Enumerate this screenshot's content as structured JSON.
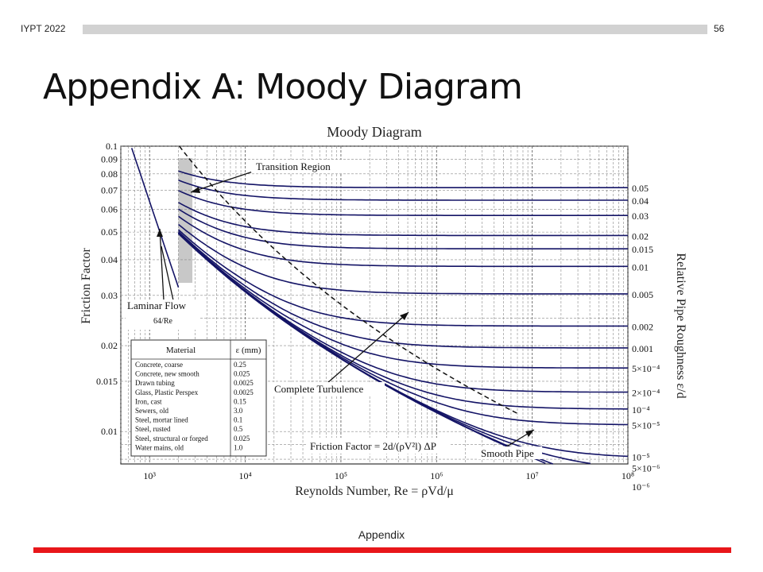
{
  "header": {
    "label": "IYPT 2022",
    "page_number": "56"
  },
  "slide": {
    "title": "Appendix A: Moody Diagram"
  },
  "footer": {
    "label": "Appendix"
  },
  "colors": {
    "accent_bar": "#e8161a",
    "curve": "#141466",
    "header_bar": "#d2d2d2"
  },
  "chart_data": {
    "type": "line",
    "title": "Moody Diagram",
    "xlabel": "Reynolds Number, Re = ρVd/μ",
    "ylabel": "Friction Factor",
    "right_label": "Relative Pipe Roughness ε/d",
    "x_scale": "log",
    "y_scale": "log",
    "xlim": [
      500,
      100000000
    ],
    "ylim": [
      0.0077,
      0.1
    ],
    "grid": true,
    "x_ticks": [
      {
        "value": 1000,
        "label": "10³"
      },
      {
        "value": 10000,
        "label": "10⁴"
      },
      {
        "value": 100000,
        "label": "10⁵"
      },
      {
        "value": 1000000,
        "label": "10⁶"
      },
      {
        "value": 10000000,
        "label": "10⁷"
      },
      {
        "value": 100000000,
        "label": "10⁸"
      }
    ],
    "y_ticks": [
      {
        "value": 0.1,
        "label": "0.1"
      },
      {
        "value": 0.09,
        "label": "0.09"
      },
      {
        "value": 0.08,
        "label": "0.08"
      },
      {
        "value": 0.07,
        "label": "0.07"
      },
      {
        "value": 0.06,
        "label": "0.06"
      },
      {
        "value": 0.05,
        "label": "0.05"
      },
      {
        "value": 0.04,
        "label": "0.04"
      },
      {
        "value": 0.03,
        "label": "0.03"
      },
      {
        "value": 0.02,
        "label": "0.02"
      },
      {
        "value": 0.015,
        "label": "0.015"
      },
      {
        "value": 0.01,
        "label": "0.01"
      }
    ],
    "roughness_curves": [
      {
        "value": 0.05,
        "label": "0.05"
      },
      {
        "value": 0.04,
        "label": "0.04"
      },
      {
        "value": 0.03,
        "label": "0.03"
      },
      {
        "value": 0.02,
        "label": "0.02"
      },
      {
        "value": 0.015,
        "label": "0.015"
      },
      {
        "value": 0.01,
        "label": "0.01"
      },
      {
        "value": 0.005,
        "label": "0.005"
      },
      {
        "value": 0.002,
        "label": "0.002"
      },
      {
        "value": 0.001,
        "label": "0.001"
      },
      {
        "value": 0.0005,
        "label": "5×10⁻⁴"
      },
      {
        "value": 0.0002,
        "label": "2×10⁻⁴"
      },
      {
        "value": 0.0001,
        "label": "10⁻⁴"
      },
      {
        "value": 5e-05,
        "label": "5×10⁻⁵"
      },
      {
        "value": 1e-05,
        "label": "10⁻⁵"
      },
      {
        "value": 5e-06,
        "label": "5×10⁻⁶"
      },
      {
        "value": 1e-06,
        "label": "10⁻⁶"
      },
      {
        "value": 0,
        "label": ""
      }
    ],
    "laminar": {
      "equation": "f = 64/Re",
      "re_range": [
        650,
        2000
      ]
    },
    "transition_region_re": [
      2000,
      2800
    ],
    "annotations": {
      "transition": "Transition Region",
      "laminar": "Laminar Flow",
      "laminar_formula": "64/Re",
      "turbulence": "Complete Turbulence",
      "friction_formula": "Friction Factor = 2d/(ρV²l) ΔP",
      "smooth": "Smooth Pipe"
    },
    "materials_table": {
      "headers": [
        "Material",
        "ε (mm)"
      ],
      "rows": [
        [
          "Concrete, coarse",
          "0.25"
        ],
        [
          "Concrete, new smooth",
          "0.025"
        ],
        [
          "Drawn tubing",
          "0.0025"
        ],
        [
          "Glass, Plastic Perspex",
          "0.0025"
        ],
        [
          "Iron, cast",
          "0.15"
        ],
        [
          "Sewers, old",
          "3.0"
        ],
        [
          "Steel, mortar lined",
          "0.1"
        ],
        [
          "Steel, rusted",
          "0.5"
        ],
        [
          "Steel, structural or forged",
          "0.025"
        ],
        [
          "Water mains, old",
          "1.0"
        ]
      ]
    }
  }
}
